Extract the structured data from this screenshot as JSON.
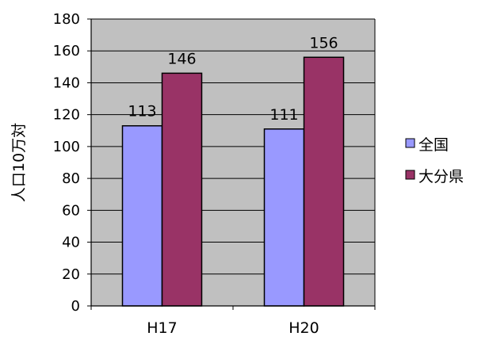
{
  "chart_data": {
    "type": "bar",
    "title": "",
    "xlabel": "",
    "ylabel": "人口10万対",
    "categories": [
      "H17",
      "H20"
    ],
    "series": [
      {
        "name": "全国",
        "values": [
          113,
          111
        ],
        "color": "#9999ff"
      },
      {
        "name": "大分県",
        "values": [
          146,
          156
        ],
        "color": "#993366"
      }
    ],
    "ylim": [
      0,
      180
    ],
    "yticks": [
      0,
      20,
      40,
      60,
      80,
      100,
      120,
      140,
      160,
      180
    ],
    "plot_background": "#c0c0c0",
    "grid": true,
    "legend_position": "right"
  }
}
